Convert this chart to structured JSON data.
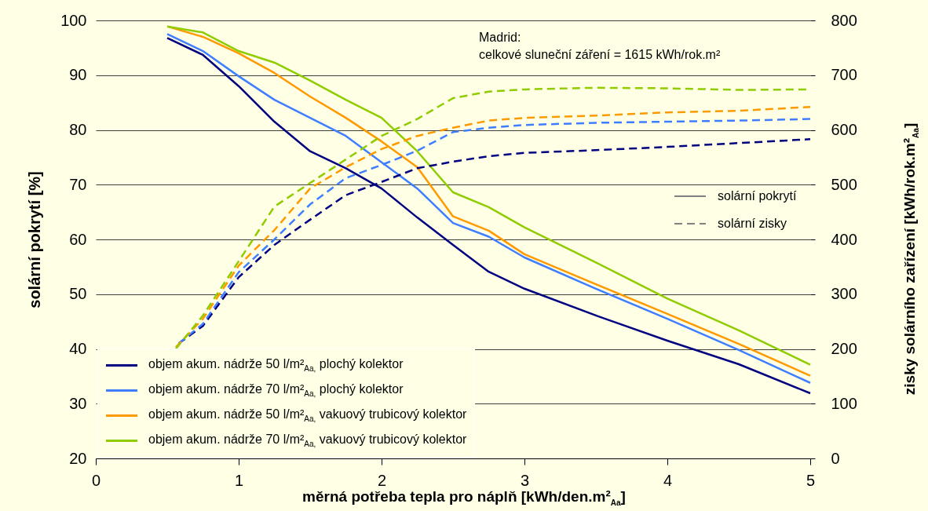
{
  "chart_data": {
    "type": "line",
    "xlabel": "měrná potřeba tepla pro náplň [kWh/den.m²$_{Aa}$]",
    "ylabel": "solární pokrytí [%]",
    "y2label": "zisky solárního zařízení [kWh/rok.m²$_{Aa}$]",
    "annotations": [
      "Madrid:\ncelkové sluneční záření = 1615 kWh/rok.m²",
      "solární pokrytí",
      "solární zisky"
    ],
    "xlim": [
      0,
      5
    ],
    "xticks": [
      0,
      1,
      2,
      3,
      4,
      5
    ],
    "ylim": [
      20,
      100
    ],
    "yticks": [
      20,
      30,
      40,
      50,
      60,
      70,
      80,
      90,
      100
    ],
    "y2lim": [
      0,
      800
    ],
    "y2ticks": [
      0,
      100,
      200,
      300,
      400,
      500,
      600,
      700,
      800
    ],
    "grid": "y",
    "legend": "bottom left",
    "marker": "none",
    "series": [
      {
        "name": "objem akum. nádrže 50 l/m²$_{Aa,}$ plochý kolektor",
        "color": "#000080",
        "line_style": "solid",
        "x": [
          0.5,
          0.75,
          1,
          1.25,
          1.5,
          1.75,
          2,
          2.25,
          2.5,
          2.75,
          3,
          3.5,
          4,
          4.5,
          5
        ],
        "values": [
          96.8,
          93.7,
          88.0,
          81.5,
          76.1,
          73.0,
          69.3,
          64.0,
          59.0,
          54.1,
          51.0,
          46.1,
          41.5,
          37.2,
          31.9
        ]
      },
      {
        "name": "objem akum. nádrže 70 l/m²$_{Aa,}$ plochý kolektor",
        "color": "#3f7fff",
        "line_style": "solid",
        "x": [
          0.5,
          0.75,
          1,
          1.25,
          1.5,
          1.75,
          2,
          2.25,
          2.5,
          2.75,
          3,
          3.5,
          4,
          4.5,
          5
        ],
        "values": [
          97.5,
          94.4,
          89.8,
          85.5,
          82.2,
          78.9,
          74.1,
          69.3,
          63.0,
          60.5,
          56.7,
          51.0,
          45.5,
          39.8,
          33.8
        ]
      },
      {
        "name": "objem akum. nádrže 50 l/m²$_{Aa,}$ vakuový trubicový kolektor",
        "color": "#ff9900",
        "line_style": "solid",
        "x": [
          0.5,
          0.75,
          1,
          1.25,
          1.5,
          1.75,
          2,
          2.25,
          2.5,
          2.75,
          3,
          3.5,
          4,
          4.5,
          5
        ],
        "values": [
          98.9,
          97.0,
          94.0,
          90.4,
          86.1,
          82.2,
          77.9,
          73.2,
          64.2,
          61.6,
          57.3,
          51.8,
          46.4,
          40.9,
          35.1
        ]
      },
      {
        "name": "objem akum. nádrže 70 l/m²$_{Aa,}$ vakuový trubicový kolektor",
        "color": "#8fcc00",
        "line_style": "solid",
        "x": [
          0.5,
          0.75,
          1,
          1.25,
          1.5,
          1.75,
          2,
          2.25,
          2.5,
          2.75,
          3,
          3.5,
          4,
          4.5,
          5
        ],
        "values": [
          98.9,
          97.8,
          94.4,
          92.3,
          89.0,
          85.5,
          82.2,
          76.1,
          68.6,
          65.9,
          62.2,
          55.8,
          49.2,
          43.4,
          37.1
        ]
      },
      {
        "color": "#000080",
        "line_style": "dashed",
        "axis": "y2",
        "x": [
          0.58,
          0.75,
          1,
          1.25,
          1.5,
          1.75,
          2,
          2.25,
          2.5,
          2.75,
          3,
          3.5,
          4,
          4.5,
          5
        ],
        "values": [
          210,
          242,
          331,
          390,
          436,
          481,
          505,
          530,
          542,
          552,
          558,
          563,
          569,
          576,
          583
        ]
      },
      {
        "color": "#3f7fff",
        "line_style": "dashed",
        "axis": "y2",
        "x": [
          0.58,
          0.75,
          1,
          1.25,
          1.5,
          1.75,
          2,
          2.25,
          2.5,
          2.75,
          3,
          3.5,
          4,
          4.5,
          5
        ],
        "values": [
          210,
          246,
          340,
          400,
          464,
          512,
          536,
          562,
          596,
          604,
          609,
          613,
          615,
          617,
          620
        ]
      },
      {
        "color": "#ff9900",
        "line_style": "dashed",
        "axis": "y2",
        "x": [
          0.56,
          0.75,
          1,
          1.25,
          1.5,
          1.75,
          2,
          2.25,
          2.5,
          2.75,
          3,
          3.5,
          4,
          4.5,
          5
        ],
        "values": [
          203,
          255,
          352,
          417,
          493,
          532,
          565,
          589,
          604,
          617,
          622,
          626,
          632,
          635,
          642
        ]
      },
      {
        "color": "#8fcc00",
        "line_style": "dashed",
        "axis": "y2",
        "x": [
          0.56,
          0.75,
          1,
          1.25,
          1.5,
          1.75,
          2,
          2.25,
          2.5,
          2.75,
          3,
          3.5,
          4,
          4.5,
          5
        ],
        "values": [
          200,
          261,
          360,
          460,
          503,
          546,
          589,
          620,
          658,
          670,
          674,
          677,
          676,
          673,
          674
        ]
      }
    ]
  }
}
